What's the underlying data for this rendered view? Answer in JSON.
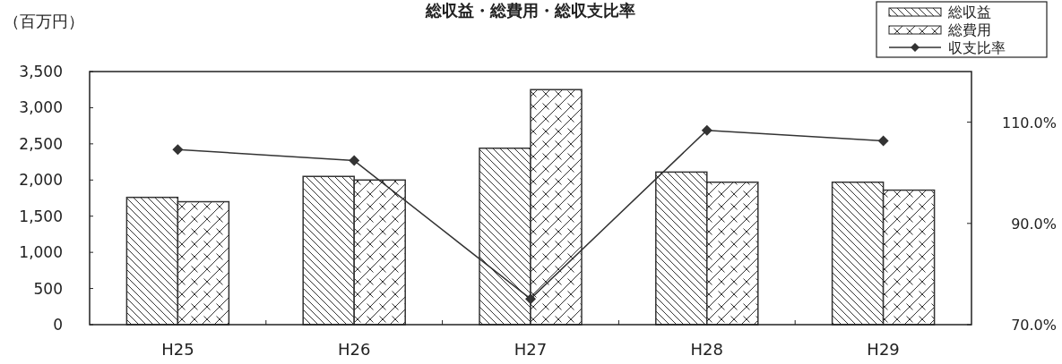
{
  "chart_data": {
    "type": "bar",
    "title": "総収益・総費用・総収支比率",
    "ylabel": "（百万円）",
    "categories": [
      "H25",
      "H26",
      "H27",
      "H28",
      "H29"
    ],
    "series": [
      {
        "name": "総収益",
        "color": "#333333",
        "values": [
          1760,
          2050,
          2440,
          2110,
          1970
        ]
      },
      {
        "name": "総費用",
        "color": "#333333",
        "values": [
          1700,
          2000,
          3250,
          1970,
          1860
        ]
      },
      {
        "name": "収支比率",
        "type": "line",
        "axis": "y2",
        "color": "#333333",
        "marker": "diamond",
        "values": [
          104.6,
          102.4,
          75.1,
          108.4,
          106.3
        ]
      }
    ],
    "ylim": [
      0,
      3500
    ],
    "yticks": [
      {
        "value": 0,
        "label": "0"
      },
      {
        "value": 500,
        "label": "500"
      },
      {
        "value": 1000,
        "label": "1,000"
      },
      {
        "value": 1500,
        "label": "1,500"
      },
      {
        "value": 2000,
        "label": "2,000"
      },
      {
        "value": 2500,
        "label": "2,500"
      },
      {
        "value": 3000,
        "label": "3,000"
      },
      {
        "value": 3500,
        "label": "3,500"
      }
    ],
    "y2lim": [
      70,
      120
    ],
    "y2ticks": [
      {
        "value": 70,
        "label": "70.0%"
      },
      {
        "value": 90,
        "label": "90.0%"
      },
      {
        "value": 110,
        "label": "110.0%"
      }
    ],
    "legend": "top right"
  }
}
